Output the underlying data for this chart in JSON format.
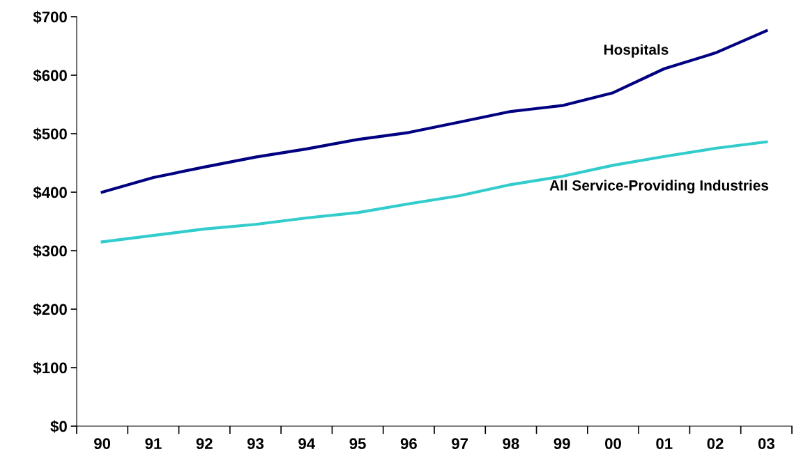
{
  "chart_data": {
    "type": "line",
    "categories": [
      "90",
      "91",
      "92",
      "93",
      "94",
      "95",
      "96",
      "97",
      "98",
      "99",
      "00",
      "01",
      "02",
      "03"
    ],
    "series": [
      {
        "name": "Hospitals",
        "color": "#000080",
        "values": [
          400,
          425,
          443,
          460,
          474,
          490,
          502,
          520,
          538,
          548,
          570,
          611,
          638,
          676
        ]
      },
      {
        "name": "All Service-Providing Industries",
        "color": "#33cccc",
        "values": [
          315,
          326,
          337,
          345,
          356,
          365,
          380,
          394,
          413,
          427,
          446,
          461,
          475,
          486
        ]
      }
    ],
    "ylim": [
      0,
      700
    ],
    "yticks": [
      {
        "value": 0,
        "label": "$0"
      },
      {
        "value": 100,
        "label": "$100"
      },
      {
        "value": 200,
        "label": "$200"
      },
      {
        "value": 300,
        "label": "$300"
      },
      {
        "value": 400,
        "label": "$400"
      },
      {
        "value": 500,
        "label": "$500"
      },
      {
        "value": 600,
        "label": "$600"
      },
      {
        "value": 700,
        "label": "$700"
      }
    ],
    "grid": false,
    "legend": false,
    "marker": "none",
    "line_style": "solid"
  }
}
